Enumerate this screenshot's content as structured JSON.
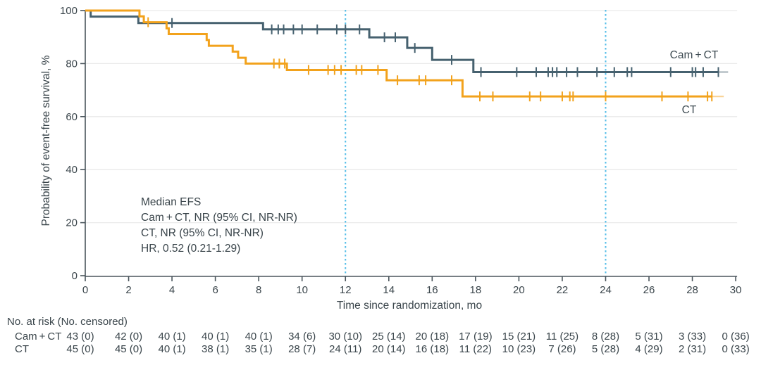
{
  "figure": {
    "y_axis_label": "Probability of event-free survival, %",
    "x_axis_label": "Time since randomization, mo",
    "annotation": [
      "Median EFS",
      "Cam + CT, NR (95% CI, NR-NR)",
      "CT, NR (95% CI, NR-NR)",
      "HR, 0.52 (0.21-1.29)"
    ],
    "curve_labels": {
      "camct": "Cam + CT",
      "ct": "CT"
    },
    "risk_table": {
      "header": "No. at risk (No. censored)",
      "rows": [
        {
          "label": "Cam + CT",
          "values": [
            "43 (0)",
            "42 (0)",
            "40 (1)",
            "40 (1)",
            "40 (1)",
            "34 (6)",
            "30 (10)",
            "25 (14)",
            "20 (18)",
            "17 (19)",
            "15 (21)",
            "11 (25)",
            "8 (28)",
            "5 (31)",
            "3 (33)",
            "0 (36)"
          ]
        },
        {
          "label": "CT",
          "values": [
            "45 (0)",
            "45 (0)",
            "40 (1)",
            "38 (1)",
            "35 (1)",
            "28 (7)",
            "24 (11)",
            "20 (14)",
            "16 (18)",
            "11 (22)",
            "10 (23)",
            "7 (26)",
            "5 (28)",
            "4 (29)",
            "2 (31)",
            "0 (33)"
          ]
        }
      ]
    },
    "colors": {
      "camct": "#46616F",
      "ct": "#F2A21C",
      "reference_line": "#56BEE8",
      "grid": "#EAEAEA",
      "axis": "#4A555C",
      "text": "#3A454B"
    }
  },
  "chart_data": {
    "type": "line",
    "subtype": "kaplan-meier-step",
    "title": "",
    "xlabel": "Time since randomization, mo",
    "ylabel": "Probability of event-free survival, %",
    "xlim": [
      0,
      30
    ],
    "ylim": [
      0,
      100
    ],
    "x_ticks": [
      0,
      2,
      4,
      6,
      8,
      10,
      12,
      14,
      16,
      18,
      20,
      22,
      24,
      26,
      28,
      30
    ],
    "y_ticks": [
      0,
      20,
      40,
      60,
      80,
      100
    ],
    "grid": "horizontal",
    "reference_lines_x": [
      12,
      24
    ],
    "series": [
      {
        "name": "Cam + CT",
        "color": "#46616F",
        "steps": [
          [
            0,
            100
          ],
          [
            0.25,
            97.7
          ],
          [
            2.45,
            95.3
          ],
          [
            8.2,
            92.9
          ],
          [
            13.1,
            89.9
          ],
          [
            14.85,
            85.9
          ],
          [
            16.0,
            81.4
          ],
          [
            17.9,
            76.8
          ]
        ],
        "censors": [
          [
            4.0,
            95.3
          ],
          [
            8.6,
            92.9
          ],
          [
            8.9,
            92.9
          ],
          [
            9.15,
            92.9
          ],
          [
            9.6,
            92.9
          ],
          [
            10.0,
            92.9
          ],
          [
            10.7,
            92.9
          ],
          [
            11.6,
            92.9
          ],
          [
            12.0,
            92.9
          ],
          [
            12.65,
            92.9
          ],
          [
            13.8,
            89.9
          ],
          [
            14.3,
            89.9
          ],
          [
            15.2,
            85.9
          ],
          [
            16.9,
            81.4
          ],
          [
            18.25,
            76.8
          ],
          [
            19.9,
            76.8
          ],
          [
            20.8,
            76.8
          ],
          [
            21.35,
            76.8
          ],
          [
            21.55,
            76.8
          ],
          [
            21.75,
            76.8
          ],
          [
            22.2,
            76.8
          ],
          [
            22.7,
            76.8
          ],
          [
            23.6,
            76.8
          ],
          [
            24.4,
            76.8
          ],
          [
            25.0,
            76.8
          ],
          [
            25.2,
            76.8
          ],
          [
            27.0,
            76.8
          ],
          [
            28.0,
            76.8
          ],
          [
            28.15,
            76.8
          ],
          [
            28.5,
            76.8
          ],
          [
            29.2,
            76.8
          ]
        ],
        "end": 29.2,
        "tail_end": 29.65
      },
      {
        "name": "CT",
        "color": "#F2A21C",
        "steps": [
          [
            0,
            100
          ],
          [
            2.5,
            97.8
          ],
          [
            2.7,
            95.6
          ],
          [
            3.75,
            93.3
          ],
          [
            3.85,
            91.1
          ],
          [
            5.6,
            88.9
          ],
          [
            5.7,
            86.7
          ],
          [
            6.8,
            84.5
          ],
          [
            7.05,
            82.2
          ],
          [
            7.4,
            80.0
          ],
          [
            9.3,
            77.6
          ],
          [
            13.9,
            73.7
          ],
          [
            17.4,
            67.6
          ]
        ],
        "censors": [
          [
            2.9,
            95.6
          ],
          [
            8.7,
            80.0
          ],
          [
            8.95,
            80.0
          ],
          [
            9.2,
            80.0
          ],
          [
            10.3,
            77.6
          ],
          [
            11.2,
            77.6
          ],
          [
            11.5,
            77.6
          ],
          [
            11.8,
            77.6
          ],
          [
            12.5,
            77.6
          ],
          [
            12.75,
            77.6
          ],
          [
            13.5,
            77.6
          ],
          [
            14.4,
            73.7
          ],
          [
            15.4,
            73.7
          ],
          [
            15.7,
            73.7
          ],
          [
            16.9,
            73.7
          ],
          [
            18.2,
            67.6
          ],
          [
            18.8,
            67.6
          ],
          [
            20.5,
            67.6
          ],
          [
            21.0,
            67.6
          ],
          [
            22.0,
            67.6
          ],
          [
            22.35,
            67.6
          ],
          [
            22.5,
            67.6
          ],
          [
            24.0,
            67.6
          ],
          [
            26.6,
            67.6
          ],
          [
            27.8,
            67.6
          ],
          [
            28.7,
            67.6
          ],
          [
            28.9,
            67.6
          ]
        ],
        "end": 28.9,
        "tail_end": 29.45
      }
    ],
    "annotations": [
      "Median EFS",
      "Cam + CT, NR (95% CI, NR-NR)",
      "CT, NR (95% CI, NR-NR)",
      "HR, 0.52 (0.21-1.29)"
    ],
    "risk_table": {
      "title": "No. at risk (No. censored)",
      "times": [
        0,
        2,
        4,
        6,
        8,
        10,
        12,
        14,
        16,
        18,
        20,
        22,
        24,
        26,
        28,
        30
      ],
      "groups": [
        {
          "name": "Cam + CT",
          "at_risk": [
            43,
            42,
            40,
            40,
            40,
            34,
            30,
            25,
            20,
            17,
            15,
            11,
            8,
            5,
            3,
            0
          ],
          "censored": [
            0,
            0,
            1,
            1,
            1,
            6,
            10,
            14,
            18,
            19,
            21,
            25,
            28,
            31,
            33,
            36
          ]
        },
        {
          "name": "CT",
          "at_risk": [
            45,
            45,
            40,
            38,
            35,
            28,
            24,
            20,
            16,
            11,
            10,
            7,
            5,
            4,
            2,
            0
          ],
          "censored": [
            0,
            0,
            1,
            1,
            1,
            7,
            11,
            14,
            18,
            22,
            23,
            26,
            28,
            29,
            31,
            33
          ]
        }
      ]
    }
  }
}
